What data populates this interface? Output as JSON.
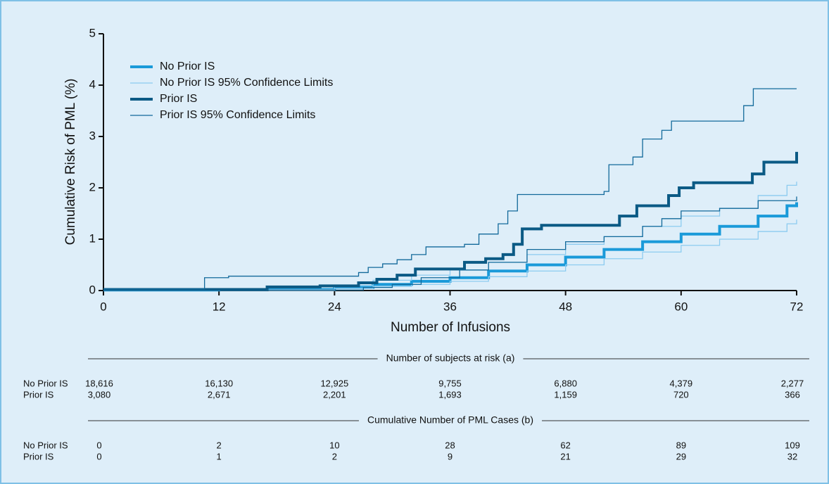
{
  "chart_data": {
    "type": "step",
    "xlabel": "Number of Infusions",
    "ylabel": "Cumulative Risk of PML (%)",
    "xlim": [
      0,
      72
    ],
    "xticks": [
      0,
      12,
      24,
      36,
      48,
      60,
      72
    ],
    "ylim": [
      0,
      5
    ],
    "yticks": [
      0,
      1,
      2,
      3,
      4,
      5
    ],
    "series": [
      {
        "name": "No Prior IS",
        "color": "#1a9ad9",
        "x": [
          0,
          12,
          24,
          28,
          32,
          36,
          40,
          44,
          48,
          52,
          56,
          60,
          64,
          68,
          71,
          72
        ],
        "values": [
          0.01,
          0.02,
          0.06,
          0.12,
          0.18,
          0.25,
          0.38,
          0.5,
          0.65,
          0.8,
          0.95,
          1.1,
          1.25,
          1.45,
          1.65,
          1.72
        ]
      },
      {
        "name": "No Prior IS 95% Confidence Limits",
        "color": "#8ccbf0",
        "lower": {
          "x": [
            0,
            24,
            28,
            32,
            36,
            40,
            44,
            48,
            52,
            56,
            60,
            64,
            68,
            71,
            72
          ],
          "values": [
            0,
            0.04,
            0.08,
            0.12,
            0.18,
            0.27,
            0.38,
            0.5,
            0.62,
            0.75,
            0.88,
            1.0,
            1.15,
            1.3,
            1.38
          ]
        },
        "upper": {
          "x": [
            0,
            24,
            28,
            32,
            36,
            40,
            44,
            48,
            52,
            56,
            60,
            64,
            68,
            71,
            72
          ],
          "values": [
            0.02,
            0.1,
            0.2,
            0.3,
            0.4,
            0.55,
            0.7,
            0.9,
            1.05,
            1.25,
            1.45,
            1.6,
            1.85,
            2.05,
            2.12
          ]
        }
      },
      {
        "name": "Prior IS",
        "color": "#0b5a85",
        "x": [
          0,
          17,
          22.5,
          26.5,
          28.4,
          30.5,
          32.4,
          37.5,
          39.7,
          41.5,
          42.6,
          43.5,
          45.5,
          53.6,
          55.4,
          58.7,
          59.8,
          61.3,
          67.4,
          68.6,
          72
        ],
        "values": [
          0.02,
          0.07,
          0.09,
          0.15,
          0.22,
          0.3,
          0.42,
          0.55,
          0.62,
          0.7,
          0.9,
          1.2,
          1.27,
          1.45,
          1.65,
          1.85,
          2.0,
          2.1,
          2.27,
          2.5,
          2.7
        ]
      },
      {
        "name": "Prior IS 95% Confidence Limits",
        "color": "#12699a",
        "lower": {
          "x": [
            0,
            17,
            27,
            30,
            33,
            37,
            40,
            44,
            48,
            52,
            56,
            58,
            60,
            64,
            68,
            72
          ],
          "values": [
            0,
            0.01,
            0.06,
            0.12,
            0.25,
            0.4,
            0.55,
            0.8,
            0.95,
            1.05,
            1.25,
            1.4,
            1.55,
            1.6,
            1.75,
            1.83
          ]
        },
        "upper": {
          "x": [
            0,
            10.5,
            13,
            26.5,
            27.5,
            29,
            30.5,
            32,
            33.5,
            37.5,
            39,
            41,
            42,
            43,
            52,
            52.5,
            55,
            56,
            58,
            59,
            66.5,
            67.5,
            72
          ],
          "values": [
            0.03,
            0.25,
            0.28,
            0.35,
            0.45,
            0.52,
            0.6,
            0.7,
            0.85,
            0.9,
            1.1,
            1.3,
            1.55,
            1.87,
            1.93,
            2.45,
            2.6,
            2.95,
            3.12,
            3.3,
            3.6,
            3.93,
            3.93
          ]
        }
      }
    ]
  },
  "risk_table": {
    "sections": [
      {
        "title": "Number of subjects at risk (a)",
        "rows": [
          {
            "label": "No Prior IS",
            "values": [
              "18,616",
              "16,130",
              "12,925",
              "9,755",
              "6,880",
              "4,379",
              "2,277"
            ]
          },
          {
            "label": "Prior IS",
            "values": [
              "3,080",
              "2,671",
              "2,201",
              "1,693",
              "1,159",
              "720",
              "366"
            ]
          }
        ]
      },
      {
        "title": "Cumulative Number of PML Cases (b)",
        "rows": [
          {
            "label": "No Prior IS",
            "values": [
              "0",
              "2",
              "10",
              "28",
              "62",
              "89",
              "109"
            ]
          },
          {
            "label": "Prior IS",
            "values": [
              "0",
              "1",
              "2",
              "9",
              "21",
              "29",
              "32"
            ]
          }
        ]
      }
    ]
  }
}
